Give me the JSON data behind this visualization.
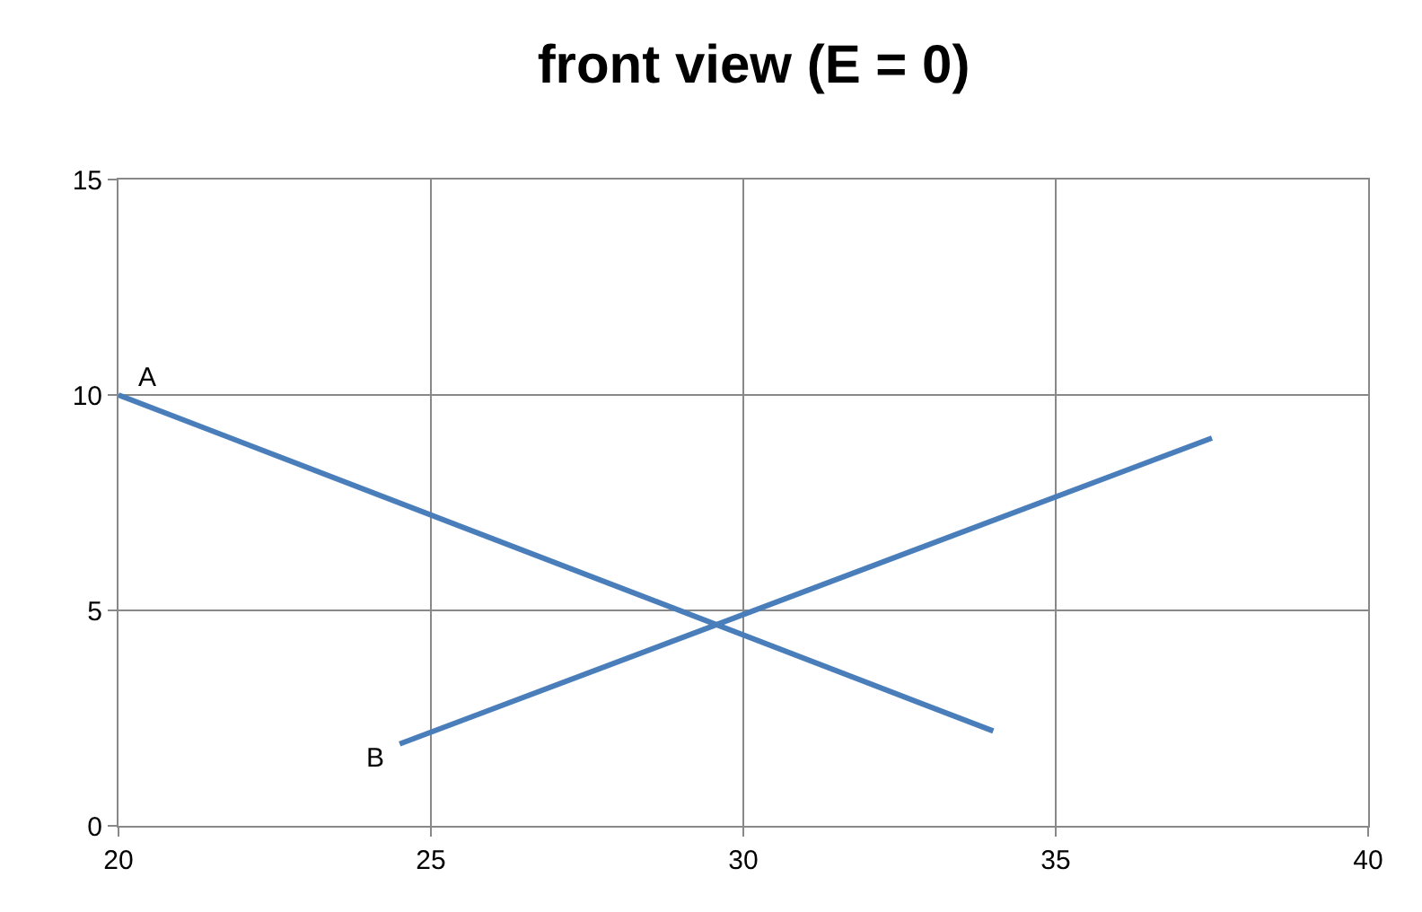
{
  "chart_data": {
    "type": "line",
    "title": "front view (E = 0)",
    "series": [
      {
        "color": "#4a7ebb",
        "x": [
          20,
          34
        ],
        "values": [
          10,
          2.2
        ]
      },
      {
        "color": "#4a7ebb",
        "x": [
          24.5,
          37.5
        ],
        "values": [
          1.9,
          9
        ]
      }
    ],
    "xlim": [
      20,
      40
    ],
    "xticks": [
      20,
      25,
      30,
      35,
      40
    ],
    "ylim": [
      0,
      15
    ],
    "yticks": [
      0,
      5,
      10,
      15
    ],
    "grid": true,
    "marker": "none",
    "line_style": "solid",
    "annotations": [
      {
        "text": "A",
        "x": 20,
        "y": 10
      },
      {
        "text": "B",
        "x": 24.5,
        "y": 1.9
      }
    ]
  }
}
